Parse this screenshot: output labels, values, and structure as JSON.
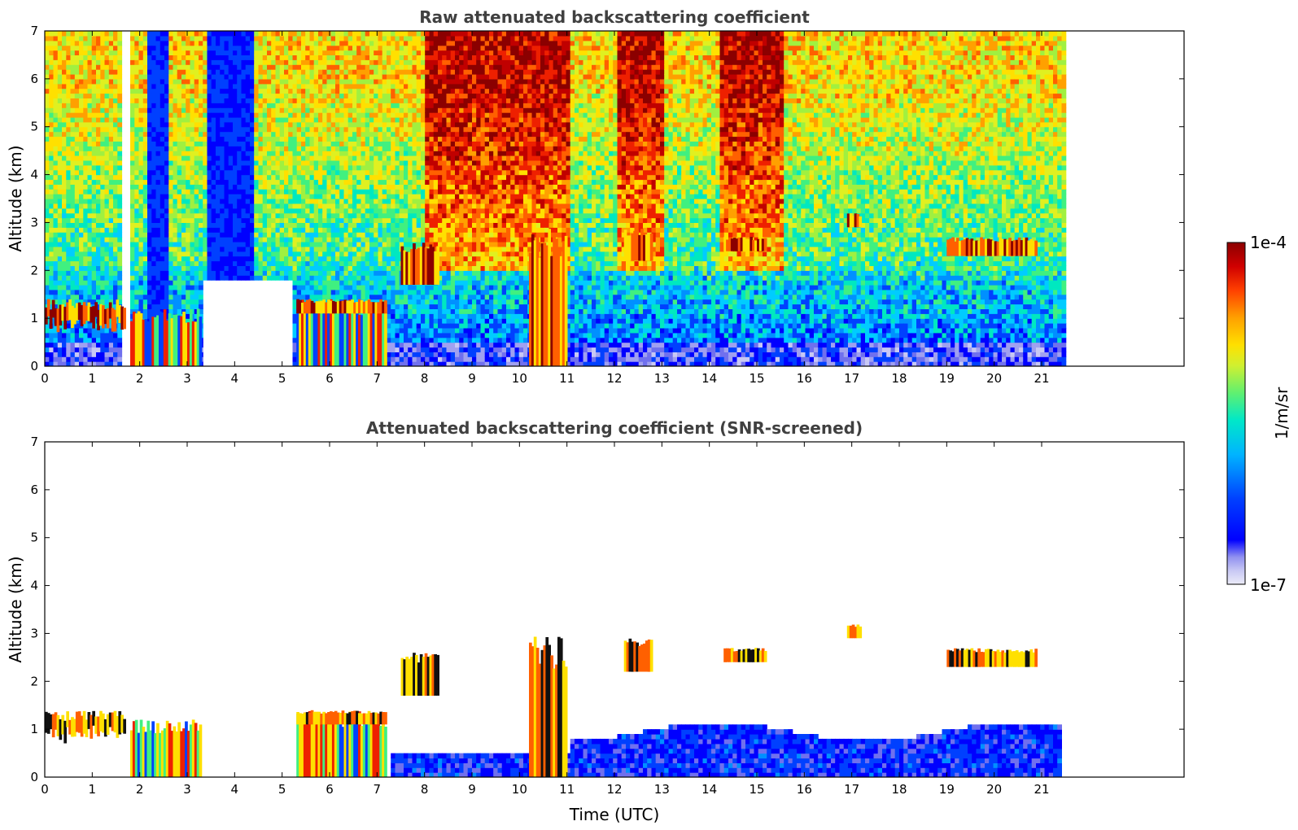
{
  "chart_data": [
    {
      "type": "heatmap",
      "title": "Raw attenuated backscattering coefficient",
      "xlabel": "",
      "ylabel": "Altitude (km)",
      "xlim": [
        0,
        24
      ],
      "ylim": [
        0,
        7
      ],
      "x_ticks": [
        0,
        1,
        2,
        3,
        4,
        5,
        6,
        7,
        8,
        9,
        10,
        11,
        12,
        13,
        14,
        15,
        16,
        17,
        18,
        19,
        20,
        21
      ],
      "y_ticks": [
        0,
        1,
        2,
        3,
        4,
        5,
        6,
        7
      ],
      "data_extent_x": [
        0,
        21.45
      ],
      "grid": false,
      "features": [
        {
          "kind": "cloud_layer",
          "x": [
            0.0,
            1.7
          ],
          "y": [
            0.5,
            1.4
          ]
        },
        {
          "kind": "boundary_layer",
          "x": [
            1.8,
            3.3
          ],
          "y": [
            0.0,
            1.2
          ]
        },
        {
          "kind": "boundary_layer",
          "x": [
            5.3,
            7.2
          ],
          "y": [
            0.0,
            1.4
          ]
        },
        {
          "kind": "cloud_layer",
          "x": [
            5.3,
            7.2
          ],
          "y": [
            1.1,
            1.4
          ]
        },
        {
          "kind": "cloud",
          "x": [
            7.5,
            8.3
          ],
          "y": [
            1.7,
            2.6
          ]
        },
        {
          "kind": "cloud",
          "x": [
            10.2,
            11.0
          ],
          "y": [
            0.0,
            3.0
          ]
        },
        {
          "kind": "cloud",
          "x": [
            12.2,
            12.8
          ],
          "y": [
            2.2,
            2.9
          ]
        },
        {
          "kind": "cloud",
          "x": [
            14.3,
            15.2
          ],
          "y": [
            2.4,
            2.7
          ]
        },
        {
          "kind": "cloud",
          "x": [
            16.9,
            17.2
          ],
          "y": [
            2.9,
            3.2
          ]
        },
        {
          "kind": "cloud",
          "x": [
            19.0,
            20.9
          ],
          "y": [
            2.3,
            2.7
          ]
        }
      ]
    },
    {
      "type": "heatmap",
      "title": "Attenuated backscattering coefficient (SNR-screened)",
      "xlabel": "Time (UTC)",
      "ylabel": "Altitude (km)",
      "xlim": [
        0,
        24
      ],
      "ylim": [
        0,
        7
      ],
      "x_ticks": [
        0,
        1,
        2,
        3,
        4,
        5,
        6,
        7,
        8,
        9,
        10,
        11,
        12,
        13,
        14,
        15,
        16,
        17,
        18,
        19,
        20,
        21
      ],
      "y_ticks": [
        0,
        1,
        2,
        3,
        4,
        5,
        6,
        7
      ],
      "data_extent_x": [
        0,
        21.45
      ],
      "grid": false,
      "features": [
        {
          "kind": "cloud_layer",
          "x": [
            0.0,
            1.7
          ],
          "y": [
            0.5,
            1.4
          ]
        },
        {
          "kind": "boundary_layer",
          "x": [
            1.8,
            3.3
          ],
          "y": [
            0.0,
            1.2
          ]
        },
        {
          "kind": "boundary_layer",
          "x": [
            5.3,
            7.2
          ],
          "y": [
            0.0,
            1.4
          ]
        },
        {
          "kind": "cloud_layer",
          "x": [
            5.3,
            7.2
          ],
          "y": [
            1.1,
            1.4
          ]
        },
        {
          "kind": "cloud",
          "x": [
            7.5,
            8.3
          ],
          "y": [
            1.7,
            2.6
          ]
        },
        {
          "kind": "cloud",
          "x": [
            10.2,
            11.0
          ],
          "y": [
            0.0,
            3.0
          ]
        },
        {
          "kind": "cloud",
          "x": [
            12.2,
            12.8
          ],
          "y": [
            2.2,
            2.9
          ]
        },
        {
          "kind": "cloud",
          "x": [
            14.3,
            15.2
          ],
          "y": [
            2.4,
            2.7
          ]
        },
        {
          "kind": "cloud",
          "x": [
            16.9,
            17.2
          ],
          "y": [
            2.9,
            3.2
          ]
        },
        {
          "kind": "cloud",
          "x": [
            19.0,
            20.9
          ],
          "y": [
            2.3,
            2.7
          ]
        }
      ]
    }
  ],
  "colorbar": {
    "label": "1/m/sr",
    "max_label": "1e-4",
    "min_label": "1e-7",
    "scale": "log",
    "colormap": [
      "#ececf8",
      "#c8c8f4",
      "#a0a0f0",
      "#7070ee",
      "#0000ff",
      "#0040ff",
      "#0090ff",
      "#00ccff",
      "#00e8c0",
      "#40f080",
      "#a0f040",
      "#e0f020",
      "#ffe000",
      "#ffa000",
      "#ff6000",
      "#ee2000",
      "#c00000",
      "#8b0000"
    ]
  }
}
